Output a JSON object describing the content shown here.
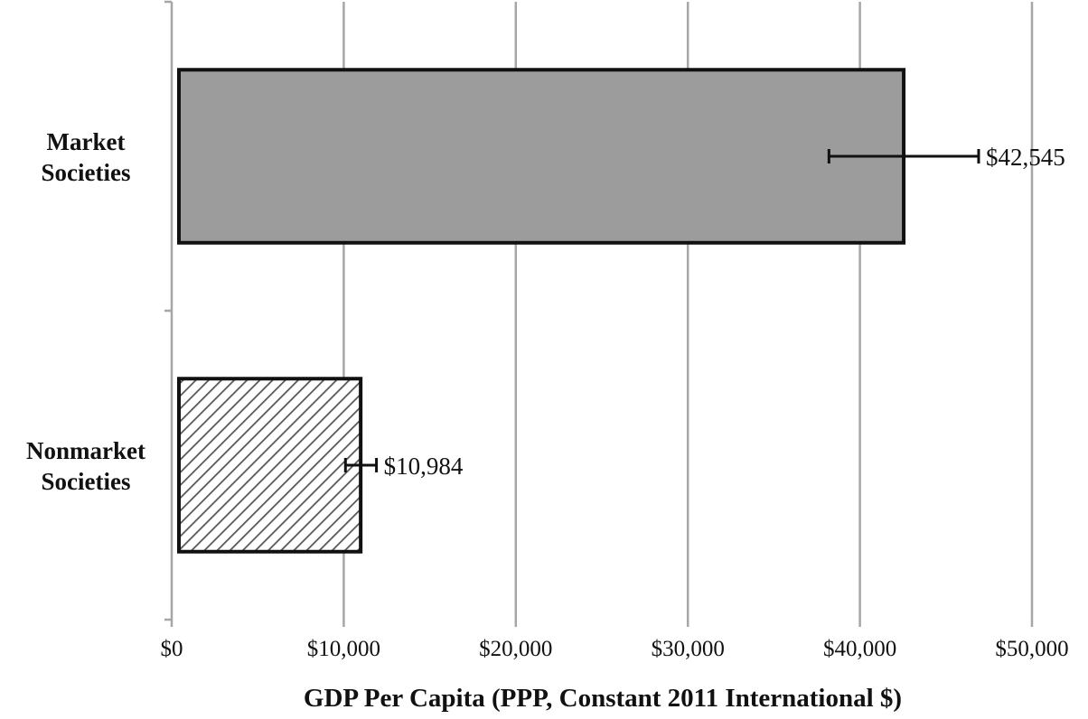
{
  "chart_data": {
    "type": "bar",
    "orientation": "horizontal",
    "categories": [
      "Market Societies",
      "Nonmarket Societies"
    ],
    "category_label_lines": [
      [
        "Market",
        "Societies"
      ],
      [
        "Nonmarket",
        "Societies"
      ]
    ],
    "values": [
      42545,
      10984
    ],
    "data_labels": [
      "$42,545",
      "$10,984"
    ],
    "error_bars": [
      {
        "low": 38200,
        "high": 46900
      },
      {
        "low": 10100,
        "high": 11900
      }
    ],
    "fills": [
      "solid-gray",
      "diagonal-hatch"
    ],
    "colors": {
      "bar_fill": "#9c9c9c",
      "bar_stroke": "#111111",
      "grid": "#a6a6a6",
      "hatch": "#555555"
    },
    "xlabel": "GDP Per Capita (PPP, Constant 2011 International $)",
    "ylabel": "",
    "xlim": [
      0,
      50000
    ],
    "x_ticks": [
      0,
      10000,
      20000,
      30000,
      40000,
      50000
    ],
    "x_tick_labels": [
      "$0",
      "$10,000",
      "$20,000",
      "$30,000",
      "$40,000",
      "$50,000"
    ],
    "grid": "vertical",
    "legend": "none"
  }
}
